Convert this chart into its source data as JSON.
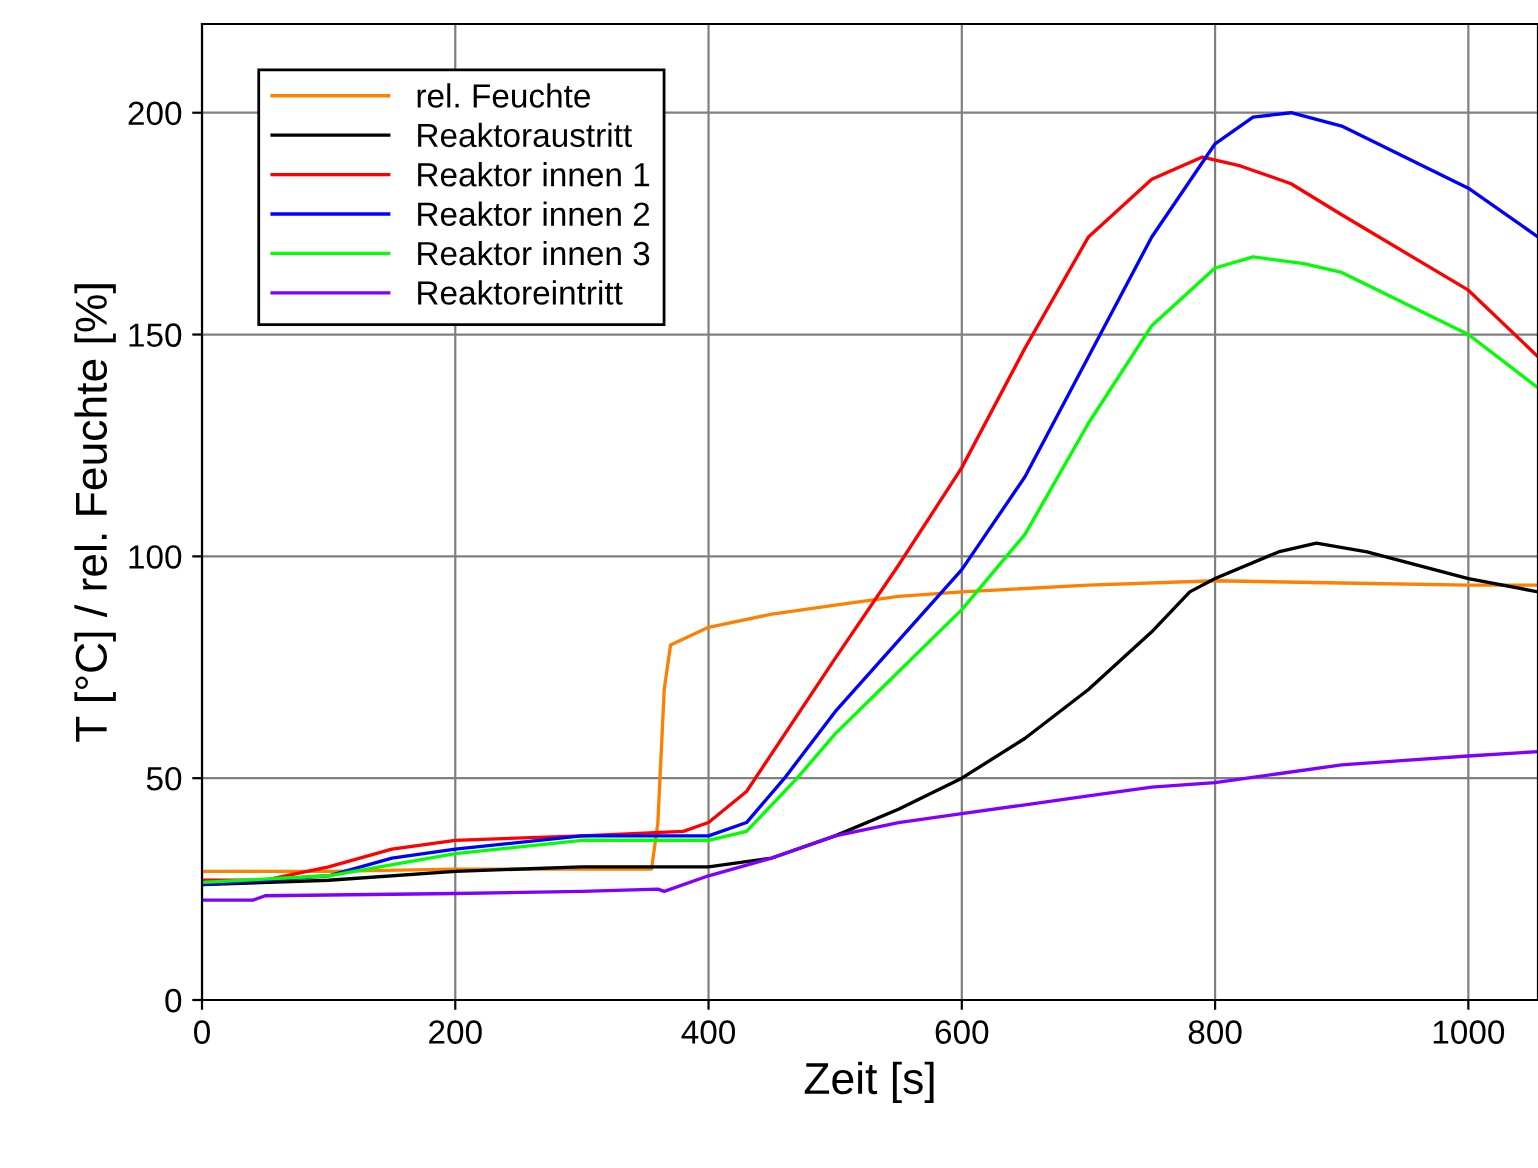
{
  "chart_data": {
    "type": "line",
    "xlabel": "Zeit [s]",
    "ylabel": "T [°C] / rel. Feuchte [%]",
    "xlim": [
      0,
      1055
    ],
    "ylim": [
      0,
      220
    ],
    "xticks": [
      0,
      200,
      400,
      600,
      800,
      1000
    ],
    "yticks": [
      0,
      50,
      100,
      150,
      200
    ],
    "grid": true,
    "legend": "top left",
    "marker": "none",
    "line_style": "solid",
    "series": [
      {
        "name": "rel. Feuchte",
        "color": "#ff8000",
        "x": [
          0,
          100,
          200,
          300,
          355,
          360,
          365,
          370,
          400,
          450,
          500,
          550,
          600,
          700,
          800,
          900,
          1000,
          1055
        ],
        "values": [
          29,
          29,
          29.5,
          29.5,
          29.5,
          40,
          70,
          80,
          84,
          87,
          89,
          91,
          92,
          93.5,
          94.5,
          94,
          93.5,
          93.5
        ]
      },
      {
        "name": "Reaktoraustritt",
        "color": "#000000",
        "x": [
          0,
          100,
          200,
          300,
          400,
          450,
          500,
          550,
          600,
          650,
          700,
          750,
          780,
          800,
          850,
          880,
          920,
          1000,
          1055
        ],
        "values": [
          26,
          27,
          29,
          30,
          30,
          32,
          37,
          43,
          50,
          59,
          70,
          83,
          92,
          95,
          101,
          103,
          101,
          95,
          92
        ]
      },
      {
        "name": "Reaktor innen 1",
        "color": "#ff0000",
        "x": [
          0,
          50,
          100,
          150,
          200,
          300,
          380,
          400,
          430,
          500,
          550,
          600,
          650,
          700,
          750,
          790,
          820,
          860,
          900,
          1000,
          1055
        ],
        "values": [
          27,
          27,
          30,
          34,
          36,
          37,
          38,
          40,
          47,
          77,
          98,
          120,
          147,
          172,
          185,
          190,
          188,
          184,
          177,
          160,
          145
        ]
      },
      {
        "name": "Reaktor innen 2",
        "color": "#0000ff",
        "x": [
          0,
          100,
          150,
          200,
          300,
          400,
          430,
          460,
          500,
          550,
          600,
          650,
          700,
          750,
          800,
          830,
          860,
          900,
          1000,
          1055
        ],
        "values": [
          26,
          28,
          32,
          34,
          37,
          37,
          40,
          50,
          65,
          81,
          97,
          118,
          145,
          172,
          193,
          199,
          200,
          197,
          183,
          172
        ]
      },
      {
        "name": "Reaktor innen 3",
        "color": "#00ff00",
        "x": [
          0,
          100,
          200,
          300,
          400,
          430,
          470,
          500,
          550,
          600,
          650,
          700,
          750,
          800,
          830,
          870,
          900,
          1000,
          1055
        ],
        "values": [
          26.5,
          28,
          33,
          36,
          36,
          38,
          50,
          60,
          74,
          88,
          105,
          130,
          152,
          165,
          167.5,
          166,
          164,
          150,
          138
        ]
      },
      {
        "name": "Reaktoreintritt",
        "color": "#8000ff",
        "x": [
          0,
          40,
          50,
          200,
          300,
          360,
          365,
          400,
          450,
          500,
          550,
          600,
          650,
          700,
          750,
          800,
          850,
          900,
          950,
          1000,
          1055
        ],
        "values": [
          22.5,
          22.5,
          23.5,
          24,
          24.5,
          25,
          24.5,
          28,
          32,
          37,
          40,
          42,
          44,
          46,
          48,
          49,
          51,
          53,
          54,
          55,
          56
        ]
      }
    ]
  }
}
